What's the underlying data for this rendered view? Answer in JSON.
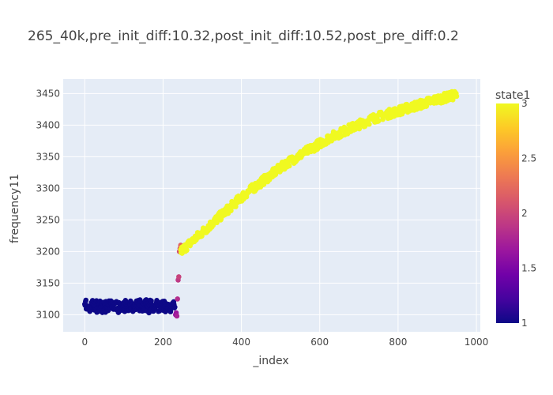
{
  "chart_data": {
    "type": "scatter",
    "title": "265_40k,pre_init_diff:10.32,post_init_diff:10.52,post_pre_diff:0.2",
    "xlabel": "_index",
    "ylabel": "frequency11",
    "xlim": [
      -55,
      1010
    ],
    "ylim": [
      3073,
      3473
    ],
    "xticks": [
      0,
      200,
      400,
      600,
      800,
      1000
    ],
    "yticks": [
      3100,
      3150,
      3200,
      3250,
      3300,
      3350,
      3400,
      3450
    ],
    "grid": true,
    "legend": "colorbar-right",
    "colorbar": {
      "title": "state1",
      "min": 1,
      "max": 3,
      "ticks": [
        1,
        1.5,
        2,
        2.5,
        3
      ],
      "colorscale": [
        "#0d0887",
        "#46039f",
        "#7201a8",
        "#9c179e",
        "#bd3786",
        "#d8576b",
        "#ed7953",
        "#fb9f3a",
        "#fdca26",
        "#f0f921"
      ]
    },
    "series": [
      {
        "state": 1,
        "x_range": [
          0,
          230
        ],
        "y_values_sample": [
          3115,
          3118,
          3112,
          3120,
          3110,
          3116,
          3122,
          3108,
          3114,
          3119,
          3111,
          3117,
          3105,
          3113,
          3121,
          3109,
          3115,
          3118,
          3112,
          3107
        ]
      },
      {
        "state": 2,
        "x_range": [
          232,
          245
        ],
        "y_values_sample": [
          3100,
          3103,
          3098,
          3125,
          3155,
          3160,
          3200,
          3205,
          3210
        ]
      },
      {
        "state": 3,
        "x_range": [
          245,
          950
        ],
        "y_values_sample": [
          3200,
          3230,
          3260,
          3290,
          3315,
          3340,
          3360,
          3380,
          3395,
          3410,
          3420,
          3430,
          3440,
          3448
        ]
      }
    ]
  }
}
